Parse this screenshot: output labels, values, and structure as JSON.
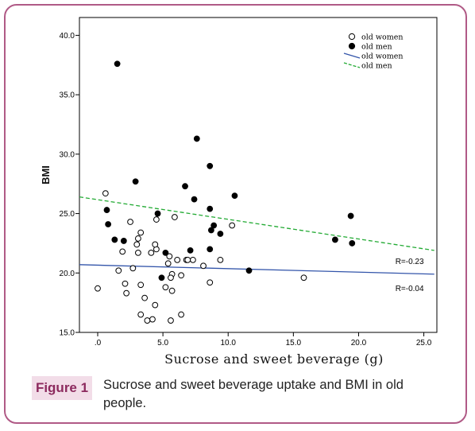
{
  "figure": {
    "label": "Figure 1",
    "caption": "Sucrose and sweet beverage uptake and BMI in old people."
  },
  "colors": {
    "frame": "#b05a86",
    "label_bg": "#f2dde8",
    "label_text": "#8c2a5e",
    "women_line": "#3355aa",
    "men_line": "#22aa33"
  },
  "chart_data": {
    "type": "scatter",
    "xlabel": "Sucrose and sweet beverage (g)",
    "ylabel": "BMI",
    "xlim": [
      -1.4,
      26
    ],
    "ylim": [
      15,
      41.5
    ],
    "x_ticks": [
      0,
      5,
      10,
      15,
      20,
      25
    ],
    "x_tick_labels": [
      ".0",
      "5.0",
      "10.0",
      "15.0",
      "20.0",
      "25.0"
    ],
    "y_ticks": [
      15,
      20,
      25,
      30,
      35,
      40
    ],
    "y_tick_labels": [
      "15.0",
      "20.0",
      "25.0",
      "30.0",
      "35.0",
      "40.0"
    ],
    "grid": false,
    "legend_position": "top-right",
    "legend": [
      {
        "label": "old women",
        "kind": "open-circle"
      },
      {
        "label": "old men",
        "kind": "filled-circle"
      },
      {
        "label": "old women",
        "kind": "solid-line"
      },
      {
        "label": "old men",
        "kind": "dashed-line"
      }
    ],
    "series": [
      {
        "name": "old women",
        "marker": "open-circle",
        "x": [
          0.6,
          0.0,
          1.6,
          2.5,
          2.7,
          3.1,
          3.3,
          3.0,
          3.3,
          2.1,
          1.9,
          2.2,
          4.1,
          4.5,
          4.4,
          4.5,
          5.9,
          4.2,
          3.3,
          3.6,
          4.4,
          5.2,
          5.4,
          5.7,
          5.6,
          5.5,
          5.7,
          6.1,
          6.4,
          6.8,
          7.3,
          6.9,
          8.1,
          8.6,
          9.4,
          10.3,
          15.8,
          3.8,
          5.6,
          6.4,
          3.1
        ],
        "y": [
          26.7,
          18.7,
          20.2,
          24.3,
          20.4,
          21.7,
          23.4,
          22.4,
          19.0,
          19.1,
          21.8,
          18.3,
          21.7,
          22.0,
          22.4,
          24.5,
          24.7,
          16.1,
          16.5,
          17.9,
          17.3,
          18.8,
          20.8,
          19.9,
          19.6,
          21.4,
          18.5,
          21.1,
          19.8,
          21.1,
          21.1,
          21.1,
          20.6,
          19.2,
          21.1,
          24.0,
          19.6,
          16.0,
          16.0,
          16.5,
          22.9
        ]
      },
      {
        "name": "old men",
        "marker": "filled-circle",
        "x": [
          1.5,
          7.6,
          8.6,
          2.9,
          6.7,
          7.4,
          0.7,
          0.8,
          1.3,
          2.0,
          4.6,
          8.6,
          8.7,
          8.9,
          9.4,
          8.6,
          7.1,
          5.2,
          4.9,
          10.5,
          11.6,
          18.2,
          19.4,
          19.5
        ],
        "y": [
          37.6,
          31.3,
          29.0,
          27.7,
          27.3,
          26.2,
          25.3,
          24.1,
          22.8,
          22.7,
          25.0,
          25.4,
          23.6,
          24.0,
          23.3,
          22.0,
          21.9,
          21.7,
          19.6,
          26.5,
          20.2,
          22.8,
          24.8,
          22.5
        ]
      }
    ],
    "fit_lines": [
      {
        "name": "old women",
        "style": "solid",
        "x": [
          -1.4,
          25.8
        ],
        "y": [
          20.7,
          19.9
        ],
        "annotation": "R=-0.04",
        "annotation_xy": [
          25.0,
          18.7
        ]
      },
      {
        "name": "old men",
        "style": "dashed",
        "x": [
          -1.4,
          25.8
        ],
        "y": [
          26.4,
          21.9
        ],
        "annotation": "R=-0.23",
        "annotation_xy": [
          25.0,
          21.0
        ]
      }
    ]
  }
}
